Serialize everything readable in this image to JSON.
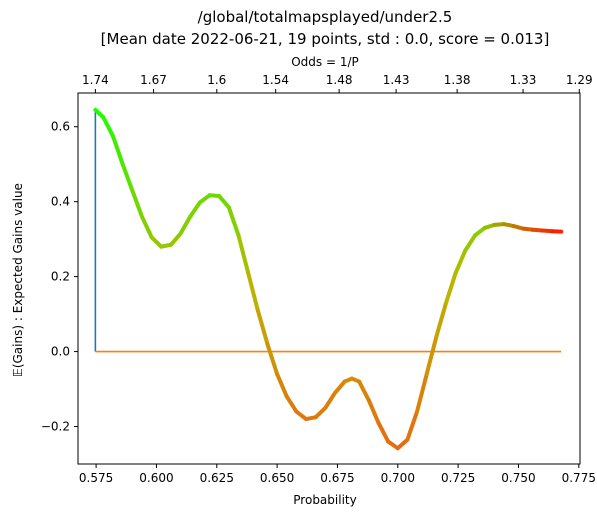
{
  "chart_data": {
    "type": "line",
    "title_line1": "/global/totalmapsplayed/under2.5",
    "title_line2": "[Mean date 2022-06-21, 19 points, std : 0.0, score = 0.013]",
    "xlabel": "Probability",
    "ylabel": "𝔼(Gains) : Expected Gains value",
    "top_axis_label": "Odds = 1/P",
    "xlim": [
      0.5675,
      0.7755
    ],
    "ylim": [
      -0.3,
      0.69
    ],
    "x_ticks": [
      "0.575",
      "0.600",
      "0.625",
      "0.650",
      "0.675",
      "0.700",
      "0.725",
      "0.750",
      "0.775"
    ],
    "y_ticks": [
      "−0.2",
      "0.0",
      "0.2",
      "0.4",
      "0.6"
    ],
    "top_ticks": [
      {
        "prob": 0.5747,
        "label": "1.74"
      },
      {
        "prob": 0.5988,
        "label": "1.67"
      },
      {
        "prob": 0.625,
        "label": "1.6"
      },
      {
        "prob": 0.6494,
        "label": "1.54"
      },
      {
        "prob": 0.6757,
        "label": "1.48"
      },
      {
        "prob": 0.6993,
        "label": "1.43"
      },
      {
        "prob": 0.7246,
        "label": "1.38"
      },
      {
        "prob": 0.7519,
        "label": "1.33"
      },
      {
        "prob": 0.7752,
        "label": "1.29"
      }
    ],
    "series": [
      {
        "colors": {
          "start": "#19ff00",
          "mid": "#b8b800",
          "low": "#e86a10",
          "end": "#ff1f00"
        },
        "points": [
          [
            0.5747,
            0.645
          ],
          [
            0.578,
            0.625
          ],
          [
            0.582,
            0.575
          ],
          [
            0.586,
            0.5
          ],
          [
            0.59,
            0.43
          ],
          [
            0.594,
            0.36
          ],
          [
            0.598,
            0.305
          ],
          [
            0.602,
            0.28
          ],
          [
            0.606,
            0.285
          ],
          [
            0.61,
            0.315
          ],
          [
            0.614,
            0.36
          ],
          [
            0.618,
            0.398
          ],
          [
            0.622,
            0.417
          ],
          [
            0.626,
            0.415
          ],
          [
            0.63,
            0.385
          ],
          [
            0.634,
            0.31
          ],
          [
            0.638,
            0.21
          ],
          [
            0.642,
            0.11
          ],
          [
            0.646,
            0.02
          ],
          [
            0.65,
            -0.06
          ],
          [
            0.654,
            -0.12
          ],
          [
            0.658,
            -0.16
          ],
          [
            0.662,
            -0.18
          ],
          [
            0.666,
            -0.175
          ],
          [
            0.67,
            -0.15
          ],
          [
            0.674,
            -0.11
          ],
          [
            0.678,
            -0.08
          ],
          [
            0.681,
            -0.072
          ],
          [
            0.684,
            -0.08
          ],
          [
            0.688,
            -0.13
          ],
          [
            0.692,
            -0.19
          ],
          [
            0.696,
            -0.24
          ],
          [
            0.7,
            -0.258
          ],
          [
            0.704,
            -0.235
          ],
          [
            0.708,
            -0.16
          ],
          [
            0.712,
            -0.06
          ],
          [
            0.716,
            0.04
          ],
          [
            0.72,
            0.13
          ],
          [
            0.724,
            0.21
          ],
          [
            0.728,
            0.27
          ],
          [
            0.732,
            0.31
          ],
          [
            0.736,
            0.33
          ],
          [
            0.74,
            0.338
          ],
          [
            0.744,
            0.34
          ],
          [
            0.748,
            0.335
          ],
          [
            0.752,
            0.328
          ],
          [
            0.756,
            0.325
          ],
          [
            0.76,
            0.323
          ],
          [
            0.764,
            0.321
          ],
          [
            0.7677,
            0.32
          ]
        ]
      },
      {
        "name": "start-marker",
        "color": "#1f77b4",
        "points": [
          [
            0.5747,
            0.0
          ],
          [
            0.5747,
            0.645
          ]
        ]
      },
      {
        "name": "zero-line",
        "color": "#ff7f0e",
        "points": [
          [
            0.5747,
            0.0
          ],
          [
            0.7677,
            0.0
          ]
        ]
      }
    ]
  }
}
